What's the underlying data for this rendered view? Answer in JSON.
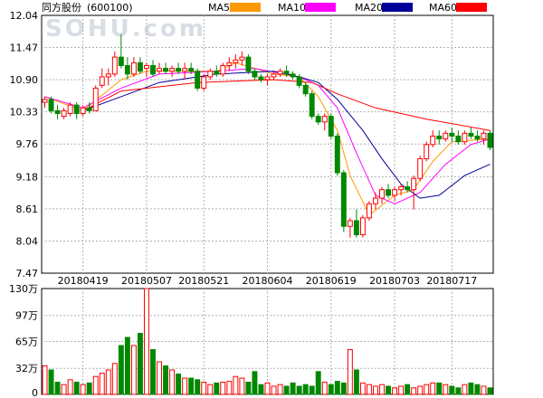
{
  "header": {
    "title": "同方股份",
    "code": "(600100)",
    "legend": [
      {
        "label": "MA5",
        "color": "#ff9900"
      },
      {
        "label": "MA10",
        "color": "#ff00ff"
      },
      {
        "label": "MA20",
        "color": "#000099"
      },
      {
        "label": "MA60",
        "color": "#ff0000"
      }
    ]
  },
  "watermark": "SOHU.com",
  "colors": {
    "up": "#ff0000",
    "down": "#008800",
    "grid": "#b0b0b0",
    "axis": "#000000"
  },
  "chart_data": [
    {
      "type": "candlestick",
      "ylim": [
        7.47,
        12.04
      ],
      "yticks": [
        "12.04",
        "11.47",
        "10.90",
        "10.33",
        "9.76",
        "9.18",
        "8.61",
        "8.04",
        "7.47"
      ],
      "xticks": [
        "20180419",
        "20180507",
        "20180521",
        "20180604",
        "20180619",
        "20180703",
        "20180717"
      ],
      "candles": [
        [
          10.5,
          10.6,
          10.4,
          10.55
        ],
        [
          10.55,
          10.6,
          10.3,
          10.35
        ],
        [
          10.35,
          10.45,
          10.2,
          10.3
        ],
        [
          10.25,
          10.4,
          10.2,
          10.35
        ],
        [
          10.3,
          10.5,
          10.25,
          10.45
        ],
        [
          10.45,
          10.5,
          10.2,
          10.3
        ],
        [
          10.3,
          10.45,
          10.25,
          10.4
        ],
        [
          10.4,
          10.5,
          10.3,
          10.35
        ],
        [
          10.35,
          10.8,
          10.35,
          10.75
        ],
        [
          10.8,
          11.1,
          10.75,
          10.95
        ],
        [
          10.95,
          11.1,
          10.8,
          11.0
        ],
        [
          11.0,
          11.4,
          10.95,
          11.3
        ],
        [
          11.3,
          11.7,
          11.1,
          11.15
        ],
        [
          11.15,
          11.3,
          10.9,
          11.0
        ],
        [
          11.0,
          11.3,
          10.95,
          11.2
        ],
        [
          11.2,
          11.3,
          11.0,
          11.05
        ],
        [
          11.1,
          11.2,
          10.95,
          11.15
        ],
        [
          11.15,
          11.25,
          10.95,
          11.0
        ],
        [
          11.05,
          11.2,
          11.0,
          11.1
        ],
        [
          11.1,
          11.2,
          11.0,
          11.05
        ],
        [
          11.05,
          11.15,
          10.95,
          11.1
        ],
        [
          11.1,
          11.2,
          11.0,
          11.05
        ],
        [
          11.05,
          11.2,
          10.9,
          11.1
        ],
        [
          11.1,
          11.2,
          11.0,
          11.05
        ],
        [
          11.05,
          11.1,
          10.7,
          10.75
        ],
        [
          10.75,
          11.0,
          10.7,
          10.95
        ],
        [
          10.95,
          11.1,
          10.9,
          11.05
        ],
        [
          11.05,
          11.15,
          10.95,
          11.0
        ],
        [
          11.0,
          11.2,
          10.95,
          11.15
        ],
        [
          11.15,
          11.3,
          11.05,
          11.2
        ],
        [
          11.2,
          11.35,
          11.1,
          11.25
        ],
        [
          11.25,
          11.4,
          11.15,
          11.3
        ],
        [
          11.3,
          11.35,
          11.0,
          11.05
        ],
        [
          11.05,
          11.1,
          10.9,
          10.95
        ],
        [
          10.95,
          11.0,
          10.85,
          10.9
        ],
        [
          10.9,
          11.0,
          10.8,
          10.95
        ],
        [
          10.95,
          11.05,
          10.9,
          11.0
        ],
        [
          11.0,
          11.1,
          10.95,
          11.05
        ],
        [
          11.05,
          11.15,
          10.95,
          11.0
        ],
        [
          11.0,
          11.05,
          10.9,
          10.95
        ],
        [
          10.95,
          11.0,
          10.75,
          10.8
        ],
        [
          10.8,
          10.85,
          10.6,
          10.65
        ],
        [
          10.65,
          10.7,
          10.2,
          10.25
        ],
        [
          10.25,
          10.3,
          10.1,
          10.15
        ],
        [
          10.15,
          10.3,
          10.0,
          10.25
        ],
        [
          10.25,
          10.3,
          9.85,
          9.9
        ],
        [
          9.9,
          9.95,
          9.2,
          9.25
        ],
        [
          9.25,
          9.3,
          8.2,
          8.3
        ],
        [
          8.3,
          8.45,
          8.1,
          8.4
        ],
        [
          8.4,
          8.6,
          8.1,
          8.15
        ],
        [
          8.15,
          8.5,
          8.1,
          8.45
        ],
        [
          8.45,
          8.75,
          8.4,
          8.7
        ],
        [
          8.7,
          8.9,
          8.6,
          8.8
        ],
        [
          8.8,
          9.0,
          8.7,
          8.95
        ],
        [
          8.95,
          9.05,
          8.8,
          8.85
        ],
        [
          8.85,
          9.0,
          8.75,
          8.95
        ],
        [
          8.95,
          9.05,
          8.85,
          9.0
        ],
        [
          9.0,
          9.1,
          8.9,
          8.95
        ],
        [
          8.95,
          9.2,
          8.6,
          9.15
        ],
        [
          9.15,
          9.55,
          9.1,
          9.5
        ],
        [
          9.5,
          9.8,
          9.45,
          9.75
        ],
        [
          9.75,
          10.0,
          9.7,
          9.9
        ],
        [
          9.9,
          10.0,
          9.75,
          9.85
        ],
        [
          9.85,
          10.0,
          9.8,
          9.95
        ],
        [
          9.95,
          10.05,
          9.8,
          9.9
        ],
        [
          9.9,
          10.0,
          9.75,
          9.8
        ],
        [
          9.8,
          10.0,
          9.75,
          9.95
        ],
        [
          9.95,
          10.05,
          9.85,
          9.9
        ],
        [
          9.9,
          10.0,
          9.8,
          9.85
        ],
        [
          9.85,
          10.0,
          9.75,
          9.95
        ],
        [
          9.95,
          10.0,
          9.65,
          9.7
        ]
      ],
      "ma": {
        "MA5": [
          [
            0,
            10.6
          ],
          [
            6,
            10.35
          ],
          [
            12,
            10.9
          ],
          [
            16,
            11.05
          ],
          [
            21,
            11.05
          ],
          [
            27,
            11.05
          ],
          [
            30,
            11.2
          ],
          [
            36,
            11.0
          ],
          [
            40,
            10.95
          ],
          [
            43,
            10.6
          ],
          [
            46,
            10.0
          ],
          [
            48,
            9.2
          ],
          [
            51,
            8.5
          ],
          [
            55,
            8.85
          ],
          [
            58,
            8.95
          ],
          [
            61,
            9.45
          ],
          [
            64,
            9.8
          ],
          [
            70,
            9.85
          ]
        ],
        "MA10": [
          [
            0,
            10.6
          ],
          [
            6,
            10.4
          ],
          [
            12,
            10.75
          ],
          [
            18,
            11.0
          ],
          [
            27,
            11.05
          ],
          [
            33,
            11.1
          ],
          [
            40,
            10.95
          ],
          [
            43,
            10.8
          ],
          [
            46,
            10.4
          ],
          [
            49,
            9.6
          ],
          [
            52,
            8.85
          ],
          [
            55,
            8.7
          ],
          [
            59,
            8.9
          ],
          [
            63,
            9.4
          ],
          [
            67,
            9.75
          ],
          [
            70,
            9.85
          ]
        ],
        "MA20": [
          [
            6,
            10.35
          ],
          [
            12,
            10.6
          ],
          [
            18,
            10.85
          ],
          [
            27,
            11.0
          ],
          [
            36,
            11.05
          ],
          [
            40,
            10.95
          ],
          [
            43,
            10.85
          ],
          [
            46,
            10.55
          ],
          [
            50,
            10.0
          ],
          [
            53,
            9.5
          ],
          [
            56,
            9.05
          ],
          [
            59,
            8.8
          ],
          [
            62,
            8.85
          ],
          [
            66,
            9.2
          ],
          [
            70,
            9.4
          ]
        ],
        "MA60": [
          [
            6,
            10.35
          ],
          [
            12,
            10.7
          ],
          [
            24,
            10.85
          ],
          [
            36,
            10.9
          ],
          [
            42,
            10.85
          ],
          [
            46,
            10.65
          ],
          [
            52,
            10.4
          ],
          [
            60,
            10.2
          ],
          [
            70,
            10.0
          ]
        ]
      }
    },
    {
      "type": "bar",
      "ylim": [
        0,
        130
      ],
      "yticks": [
        "130万",
        "97万",
        "65万",
        "32万",
        "0"
      ],
      "values": [
        35,
        30,
        15,
        12,
        18,
        15,
        12,
        14,
        22,
        26,
        30,
        38,
        60,
        70,
        60,
        75,
        130,
        55,
        40,
        35,
        30,
        25,
        20,
        20,
        18,
        15,
        12,
        14,
        15,
        16,
        22,
        20,
        15,
        28,
        12,
        14,
        10,
        12,
        10,
        14,
        10,
        12,
        10,
        28,
        15,
        12,
        16,
        14,
        55,
        30,
        14,
        12,
        10,
        12,
        10,
        8,
        10,
        12,
        8,
        10,
        12,
        14,
        14,
        12,
        10,
        8,
        12,
        14,
        12,
        10,
        8
      ]
    }
  ]
}
